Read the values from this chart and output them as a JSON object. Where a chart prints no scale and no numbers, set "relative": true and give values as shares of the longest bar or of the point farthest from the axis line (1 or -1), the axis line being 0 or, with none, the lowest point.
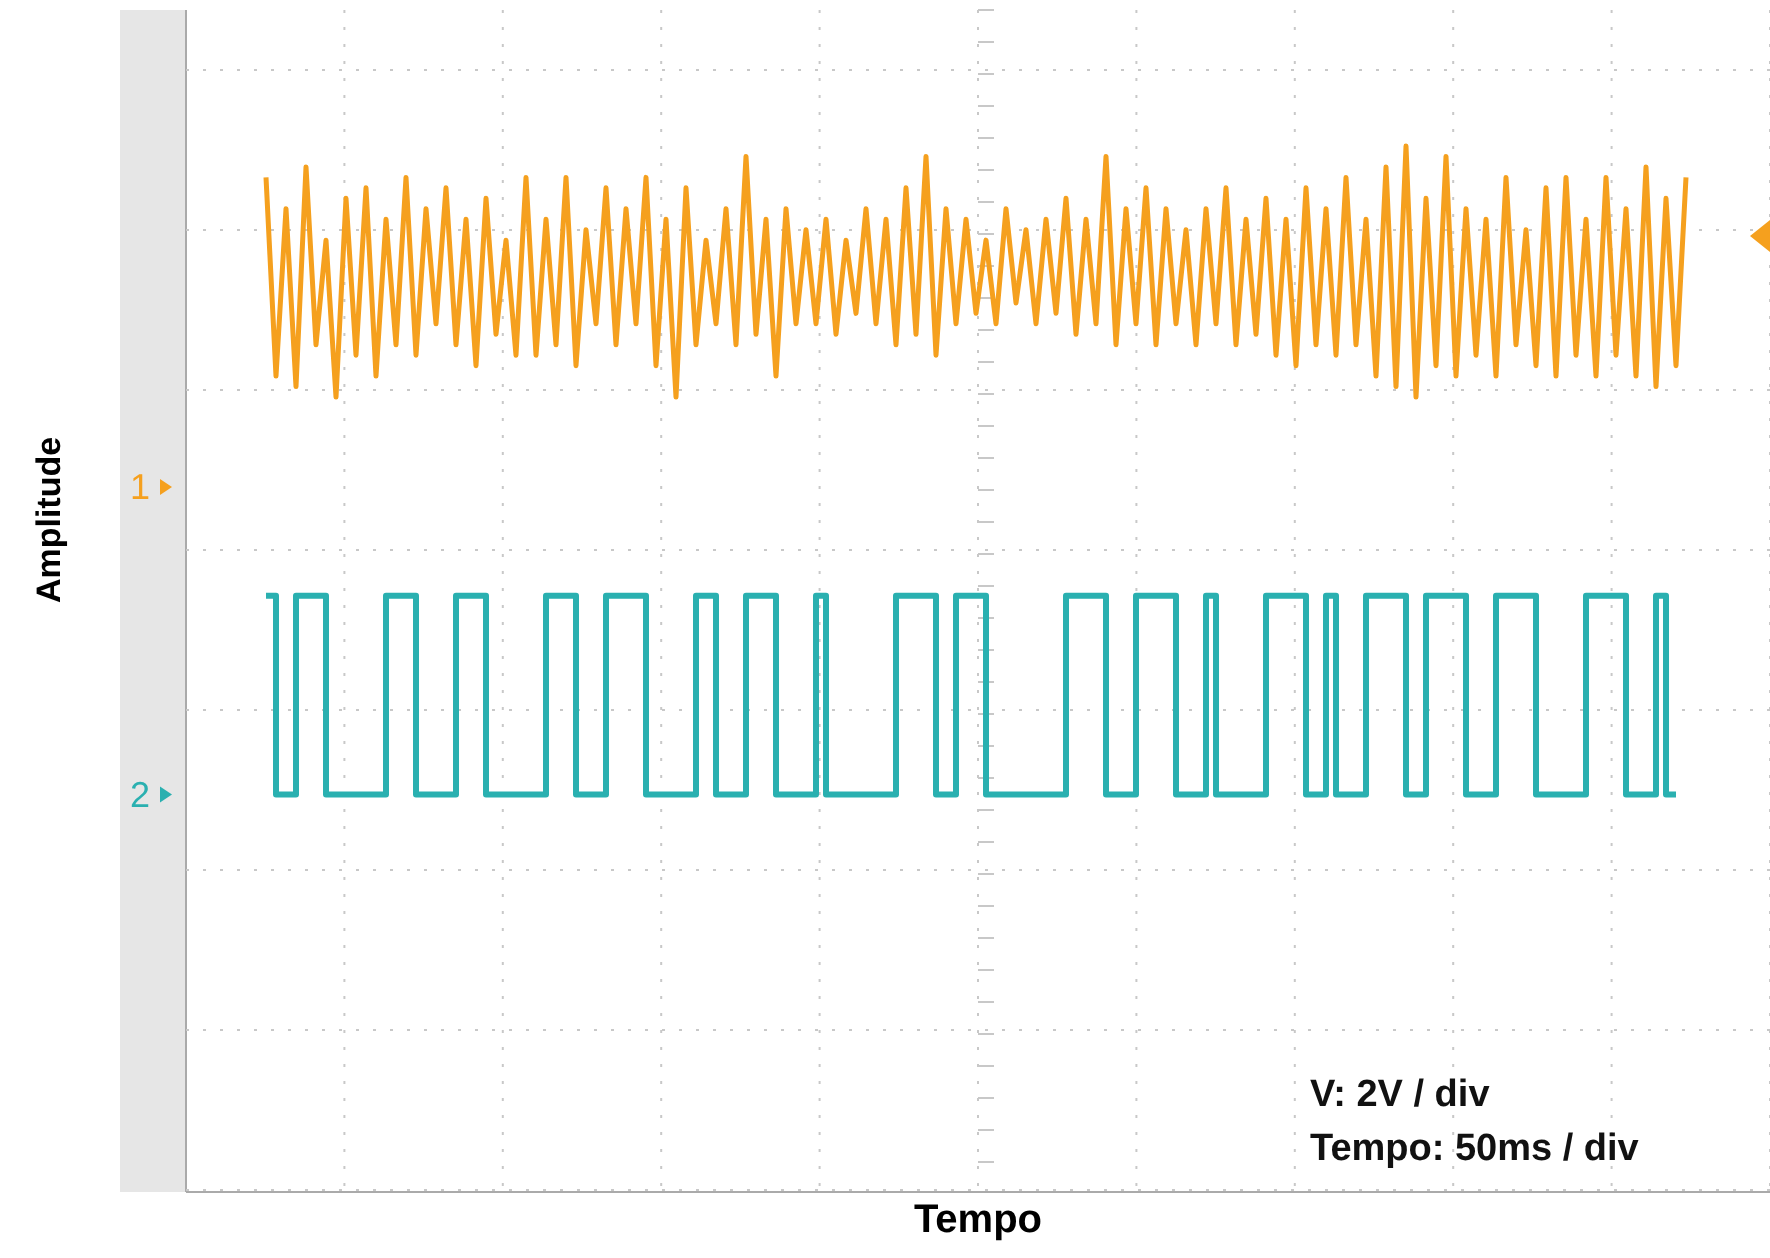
{
  "chart_data": {
    "type": "line",
    "relative": true,
    "xlabel": "Tempo",
    "ylabel": "Amplitude",
    "grid": true,
    "legend": "left",
    "annotations": [
      "V: 2V / div",
      "Tempo: 50ms / div"
    ],
    "categories": [
      null,
      null,
      null,
      null,
      null,
      null,
      null,
      null,
      null,
      null,
      null,
      null,
      null,
      null,
      null,
      null,
      null,
      null,
      null,
      null,
      null,
      null,
      null,
      null,
      null,
      null,
      null,
      null,
      null,
      null,
      null,
      null,
      null,
      null,
      null,
      null,
      null,
      null,
      null,
      null,
      null,
      null,
      null,
      null,
      null,
      null,
      null,
      null,
      null,
      null,
      null,
      null,
      null,
      null,
      null,
      null,
      null,
      null,
      null,
      null,
      null,
      null,
      null,
      null,
      null,
      null,
      null,
      null,
      null,
      null,
      null,
      null,
      null,
      null,
      null,
      null,
      null,
      null,
      null,
      null,
      null,
      null,
      null,
      null,
      null,
      null,
      null,
      null,
      null,
      null,
      null,
      null,
      null,
      null,
      null,
      null,
      null,
      null,
      null,
      null,
      null,
      null,
      null,
      null,
      null,
      null,
      null,
      null,
      null,
      null,
      null,
      null,
      null,
      null,
      null,
      null,
      null,
      null,
      null,
      null,
      null,
      null,
      null,
      null,
      null,
      null,
      null,
      null,
      null,
      null,
      null,
      null,
      null,
      null,
      null,
      null,
      null,
      null,
      null,
      null,
      null,
      null,
      null,
      null,
      null,
      null,
      null,
      null,
      null,
      null,
      null,
      null,
      null,
      null,
      null,
      null,
      null,
      null,
      null
    ],
    "series": [
      {
        "name": "1",
        "type": "line",
        "color": "#f5a01e",
        "values": [
          null,
          null,
          null,
          null,
          null,
          null,
          null,
          null,
          0.97,
          0.78,
          0.94,
          0.77,
          0.98,
          0.81,
          0.91,
          0.76,
          0.95,
          0.8,
          0.96,
          0.78,
          0.93,
          0.81,
          0.97,
          0.8,
          0.94,
          0.83,
          0.96,
          0.81,
          0.93,
          0.79,
          0.95,
          0.82,
          0.91,
          0.8,
          0.97,
          0.8,
          0.93,
          0.81,
          0.97,
          0.79,
          0.92,
          0.83,
          0.96,
          0.81,
          0.94,
          0.83,
          0.97,
          0.79,
          0.93,
          0.76,
          0.96,
          0.81,
          0.91,
          0.83,
          0.94,
          0.81,
          0.99,
          0.82,
          0.93,
          0.78,
          0.94,
          0.83,
          0.92,
          0.83,
          0.93,
          0.82,
          0.91,
          0.84,
          0.94,
          0.83,
          0.93,
          0.81,
          0.96,
          0.82,
          0.99,
          0.8,
          0.94,
          0.83,
          0.93,
          0.84,
          0.91,
          0.83,
          0.94,
          0.85,
          0.92,
          0.83,
          0.93,
          0.84,
          0.95,
          0.82,
          0.93,
          0.83,
          0.99,
          0.81,
          0.94,
          0.83,
          0.96,
          0.81,
          0.94,
          0.83,
          0.92,
          0.81,
          0.94,
          0.83,
          0.96,
          0.81,
          0.93,
          0.82,
          0.95,
          0.8,
          0.93,
          0.79,
          0.96,
          0.81,
          0.94,
          0.8,
          0.97,
          0.81,
          0.93,
          0.78,
          0.98,
          0.77,
          1.0,
          0.76,
          0.95,
          0.79,
          0.99,
          0.78,
          0.94,
          0.8,
          0.93,
          0.78,
          0.97,
          0.81,
          0.92,
          0.79,
          0.96,
          0.78,
          0.97,
          0.8,
          0.93,
          0.78,
          0.97,
          0.8,
          0.94,
          0.78,
          0.98,
          0.77,
          0.95,
          0.79,
          0.97,
          null,
          null,
          null,
          null,
          null,
          null,
          null,
          null
        ]
      },
      {
        "name": "2",
        "type": "step",
        "color": "#2ab0b0",
        "values": [
          null,
          null,
          null,
          null,
          null,
          null,
          null,
          null,
          0.57,
          0.38,
          0.38,
          0.57,
          0.57,
          0.57,
          0.38,
          0.38,
          0.38,
          0.38,
          0.38,
          0.38,
          0.57,
          0.57,
          0.57,
          0.38,
          0.38,
          0.38,
          0.38,
          0.57,
          0.57,
          0.57,
          0.38,
          0.38,
          0.38,
          0.38,
          0.38,
          0.38,
          0.57,
          0.57,
          0.57,
          0.38,
          0.38,
          0.38,
          0.57,
          0.57,
          0.57,
          0.57,
          0.38,
          0.38,
          0.38,
          0.38,
          0.38,
          0.57,
          0.57,
          0.38,
          0.38,
          0.38,
          0.57,
          0.57,
          0.57,
          0.38,
          0.38,
          0.38,
          0.38,
          0.57,
          0.38,
          0.38,
          0.38,
          0.38,
          0.38,
          0.38,
          0.38,
          0.57,
          0.57,
          0.57,
          0.57,
          0.38,
          0.38,
          0.57,
          0.57,
          0.57,
          0.38,
          0.38,
          0.38,
          0.38,
          0.38,
          0.38,
          0.38,
          0.38,
          0.57,
          0.57,
          0.57,
          0.57,
          0.38,
          0.38,
          0.38,
          0.57,
          0.57,
          0.57,
          0.57,
          0.38,
          0.38,
          0.38,
          0.57,
          0.38,
          0.38,
          0.38,
          0.38,
          0.38,
          0.57,
          0.57,
          0.57,
          0.57,
          0.38,
          0.38,
          0.57,
          0.38,
          0.38,
          0.38,
          0.57,
          0.57,
          0.57,
          0.57,
          0.38,
          0.38,
          0.57,
          0.57,
          0.57,
          0.57,
          0.38,
          0.38,
          0.38,
          0.57,
          0.57,
          0.57,
          0.57,
          0.38,
          0.38,
          0.38,
          0.38,
          0.38,
          0.57,
          0.57,
          0.57,
          0.57,
          0.38,
          0.38,
          0.38,
          0.57,
          0.38,
          0.38,
          null,
          null,
          null,
          null,
          null,
          null,
          null,
          null,
          null
        ]
      }
    ]
  }
}
